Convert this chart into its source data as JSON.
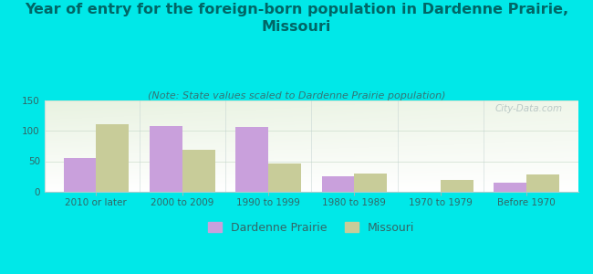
{
  "title": "Year of entry for the foreign-born population in Dardenne Prairie,\nMissouri",
  "subtitle": "(Note: State values scaled to Dardenne Prairie population)",
  "categories": [
    "2010 or later",
    "2000 to 2009",
    "1990 to 1999",
    "1980 to 1989",
    "1970 to 1979",
    "Before 1970"
  ],
  "dardenne_values": [
    55,
    108,
    106,
    25,
    0,
    15
  ],
  "missouri_values": [
    110,
    69,
    46,
    30,
    20,
    29
  ],
  "dardenne_color": "#c9a0dc",
  "missouri_color": "#c8cc99",
  "background_color": "#00e8e8",
  "title_color": "#006666",
  "subtitle_color": "#337777",
  "tick_color": "#336666",
  "ylim": [
    0,
    150
  ],
  "yticks": [
    0,
    50,
    100,
    150
  ],
  "bar_width": 0.38,
  "title_fontsize": 11.5,
  "subtitle_fontsize": 8,
  "legend_fontsize": 9,
  "tick_fontsize": 7.5,
  "watermark": "City-Data.com"
}
